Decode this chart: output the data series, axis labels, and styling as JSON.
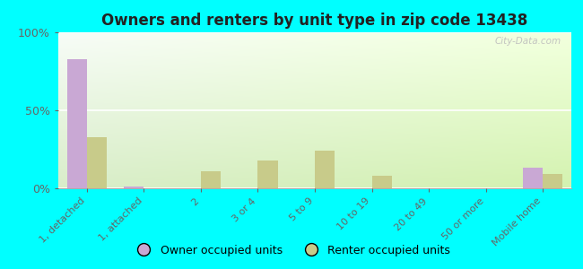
{
  "title": "Owners and renters by unit type in zip code 13438",
  "categories": [
    "1, detached",
    "1, attached",
    "2",
    "3 or 4",
    "5 to 9",
    "10 to 19",
    "20 to 49",
    "50 or more",
    "Mobile home"
  ],
  "owner_values": [
    83,
    1,
    0,
    0,
    0,
    0,
    0,
    0,
    13
  ],
  "renter_values": [
    33,
    0,
    11,
    18,
    24,
    8,
    0,
    0,
    9
  ],
  "owner_color": "#c9a8d4",
  "renter_color": "#c8cb8a",
  "background_color": "#00ffff",
  "ylim": [
    0,
    100
  ],
  "yticks": [
    0,
    50,
    100
  ],
  "ytick_labels": [
    "0%",
    "50%",
    "100%"
  ],
  "legend_owner": "Owner occupied units",
  "legend_renter": "Renter occupied units",
  "bar_width": 0.35,
  "watermark": "City-Data.com",
  "grid_color": "#ffffff",
  "tick_label_color": "#666666",
  "title_color": "#222222",
  "title_fontsize": 12
}
